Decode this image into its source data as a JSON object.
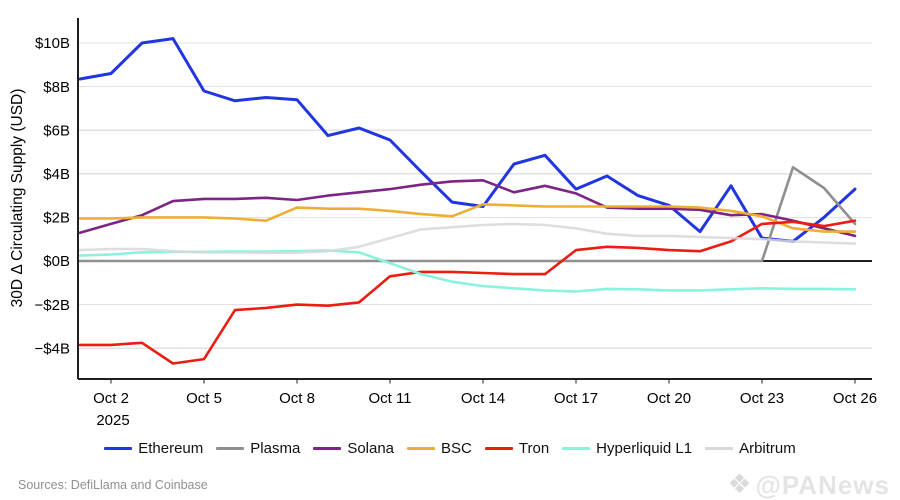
{
  "axis": {
    "y_title": "30D Δ Circulating Supply (USD)",
    "y_ticks": [
      "$10B",
      "$8B",
      "$6B",
      "$4B",
      "$2B",
      "$0B",
      "−$2B",
      "−$4B"
    ],
    "y_tick_values": [
      10,
      8,
      6,
      4,
      2,
      0,
      -2,
      -4
    ],
    "x_ticks": [
      "Oct 2",
      "Oct 5",
      "Oct 8",
      "Oct 11",
      "Oct 14",
      "Oct 17",
      "Oct 20",
      "Oct 23",
      "Oct 26"
    ],
    "x_tick_indices": [
      1,
      4,
      7,
      10,
      13,
      16,
      19,
      22,
      25
    ],
    "x_year_label": "2025"
  },
  "chart_data": {
    "type": "line",
    "x": [
      "Oct 1",
      "Oct 2",
      "Oct 3",
      "Oct 4",
      "Oct 5",
      "Oct 6",
      "Oct 7",
      "Oct 8",
      "Oct 9",
      "Oct 10",
      "Oct 11",
      "Oct 12",
      "Oct 13",
      "Oct 14",
      "Oct 15",
      "Oct 16",
      "Oct 17",
      "Oct 18",
      "Oct 19",
      "Oct 20",
      "Oct 21",
      "Oct 22",
      "Oct 23",
      "Oct 24",
      "Oct 25",
      "Oct 26"
    ],
    "x_year": "2025",
    "unit": "billions USD",
    "ylabel": "30D Δ Circulating Supply (USD)",
    "ylim": [
      -5.4,
      11.15
    ],
    "grid": "horizontal",
    "legend_position": "bottom",
    "series": [
      {
        "name": "Ethereum",
        "color": "#2236e0",
        "values": [
          8.35,
          8.6,
          10.0,
          10.2,
          7.8,
          7.35,
          7.5,
          7.4,
          5.75,
          6.1,
          5.55,
          4.1,
          2.7,
          2.5,
          4.45,
          4.85,
          3.3,
          3.9,
          3.0,
          2.55,
          1.35,
          3.45,
          1.05,
          0.9,
          2.0,
          3.3
        ]
      },
      {
        "name": "Plasma",
        "color": "#8f8f8f",
        "values": [
          0,
          0,
          0,
          0,
          0,
          0,
          0,
          0,
          0,
          0,
          0,
          0,
          0,
          0,
          0,
          0,
          0,
          0,
          0,
          0,
          0,
          0,
          0,
          4.3,
          3.35,
          1.7
        ]
      },
      {
        "name": "Solana",
        "color": "#7c2584",
        "values": [
          1.3,
          1.7,
          2.1,
          2.75,
          2.85,
          2.85,
          2.9,
          2.8,
          3.0,
          3.15,
          3.3,
          3.5,
          3.65,
          3.7,
          3.15,
          3.45,
          3.1,
          2.45,
          2.4,
          2.4,
          2.35,
          2.1,
          2.15,
          1.85,
          1.5,
          1.15
        ]
      },
      {
        "name": "BSC",
        "color": "#f0ad33",
        "values": [
          1.95,
          1.95,
          2.0,
          2.0,
          2.0,
          1.95,
          1.85,
          2.45,
          2.4,
          2.4,
          2.3,
          2.15,
          2.05,
          2.6,
          2.55,
          2.5,
          2.5,
          2.5,
          2.5,
          2.5,
          2.45,
          2.3,
          2.05,
          1.5,
          1.35,
          1.35
        ]
      },
      {
        "name": "Tron",
        "color": "#ec1c13",
        "values": [
          -3.85,
          -3.85,
          -3.75,
          -4.7,
          -4.5,
          -2.25,
          -2.15,
          -2.0,
          -2.05,
          -1.9,
          -0.7,
          -0.5,
          -0.5,
          -0.55,
          -0.6,
          -0.6,
          0.5,
          0.65,
          0.6,
          0.5,
          0.45,
          0.9,
          1.7,
          1.8,
          1.6,
          1.85
        ]
      },
      {
        "name": "Hyperliquid L1",
        "color": "#8af2dd",
        "values": [
          0.25,
          0.3,
          0.4,
          0.42,
          0.42,
          0.43,
          0.43,
          0.45,
          0.48,
          0.4,
          -0.1,
          -0.6,
          -0.95,
          -1.15,
          -1.25,
          -1.35,
          -1.4,
          -1.28,
          -1.3,
          -1.35,
          -1.35,
          -1.3,
          -1.25,
          -1.28,
          -1.28,
          -1.3
        ]
      },
      {
        "name": "Arbitrum",
        "color": "#d8d8d8",
        "values": [
          0.5,
          0.55,
          0.55,
          0.45,
          0.4,
          0.4,
          0.38,
          0.38,
          0.45,
          0.65,
          1.05,
          1.45,
          1.55,
          1.65,
          1.7,
          1.65,
          1.5,
          1.25,
          1.15,
          1.15,
          1.1,
          1.05,
          1.0,
          0.9,
          0.85,
          0.8
        ]
      }
    ]
  },
  "colors": {
    "gridline": "#e2e2e2",
    "zero_line": "#1f1f1f",
    "spine": "#1f1f1f",
    "tick_text": "#000000"
  },
  "footer": {
    "sources": "Sources: DefiLlama and Coinbase",
    "watermark": "@PANews",
    "watermark_icon": "panews-diamond-icon"
  }
}
